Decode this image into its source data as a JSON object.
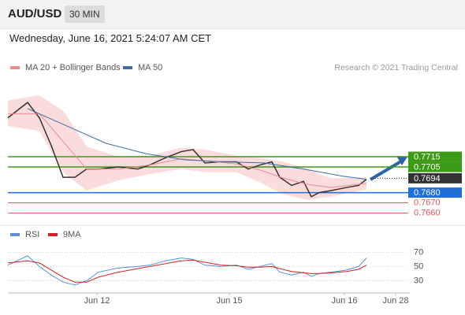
{
  "header": {
    "symbol": "AUD/USD",
    "interval": "30 MIN",
    "timestamp": "Wednesday, June 16, 2021 5:24:07 AM CET"
  },
  "chart_data": [
    {
      "type": "line",
      "source": "Research © 2021 Trading Central",
      "xlim": [
        0,
        102
      ],
      "ylim": [
        0.7652,
        0.778
      ],
      "series": [
        {
          "color": "#333333",
          "x": [
            0,
            5,
            8,
            11,
            14,
            17,
            20,
            23,
            28,
            33,
            36,
            40,
            44,
            47,
            50,
            54,
            58,
            61,
            64,
            67,
            69,
            72,
            75,
            77,
            79,
            82,
            86,
            89,
            91
          ],
          "values": [
            0.7753,
            0.7768,
            0.7753,
            0.7726,
            0.7695,
            0.7695,
            0.7703,
            0.7703,
            0.7705,
            0.7703,
            0.7707,
            0.7714,
            0.772,
            0.7722,
            0.7709,
            0.771,
            0.771,
            0.7703,
            0.7707,
            0.771,
            0.7695,
            0.7687,
            0.7691,
            0.7676,
            0.768,
            0.7682,
            0.7685,
            0.7687,
            0.7693
          ]
        },
        {
          "name": "MA 20 + Bollinger Bands",
          "color": "#ee8a8a",
          "band_color": "#fbdcdc",
          "x": [
            0,
            8,
            14,
            20,
            28,
            36,
            44,
            50,
            58,
            64,
            70,
            76,
            82,
            91
          ],
          "values": [
            0.7757,
            0.7757,
            0.773,
            0.7703,
            0.7703,
            0.7707,
            0.7713,
            0.7711,
            0.7708,
            0.7702,
            0.7694,
            0.7688,
            0.7685,
            0.7689
          ],
          "upper": [
            0.777,
            0.7775,
            0.776,
            0.7725,
            0.7715,
            0.7716,
            0.7724,
            0.7722,
            0.7716,
            0.7714,
            0.771,
            0.7703,
            0.7694,
            0.7695
          ],
          "lower": [
            0.7745,
            0.774,
            0.77,
            0.7682,
            0.7692,
            0.7698,
            0.7703,
            0.77,
            0.77,
            0.769,
            0.7678,
            0.7673,
            0.7676,
            0.7683
          ]
        },
        {
          "name": "MA 50",
          "color": "#3a6fa8",
          "x": [
            5,
            15,
            25,
            35,
            45,
            55,
            65,
            75,
            85,
            91
          ],
          "values": [
            0.7762,
            0.7745,
            0.7728,
            0.7718,
            0.7712,
            0.771,
            0.7709,
            0.7703,
            0.7696,
            0.7693
          ]
        }
      ],
      "levels": [
        {
          "value": 0.7715,
          "label": "0.7715",
          "color": "#3c9a14",
          "style": "box",
          "line": "solid"
        },
        {
          "value": 0.7705,
          "label": "0.7705",
          "color": "#3c9a14",
          "style": "box",
          "line": "solid"
        },
        {
          "value": 0.7694,
          "label": "0.7694",
          "color": "#333333",
          "style": "box",
          "line": "dotted"
        },
        {
          "value": 0.768,
          "label": "0.7680",
          "color": "#1f6fd6",
          "style": "box",
          "line": "solid"
        },
        {
          "value": 0.767,
          "label": "0.7670",
          "color": "#e05555",
          "style": "text",
          "line": "solid"
        },
        {
          "value": 0.766,
          "label": "0.7660",
          "color": "#e05555",
          "style": "text",
          "line": "solid"
        }
      ]
    },
    {
      "type": "line",
      "xlim": [
        0,
        102
      ],
      "ylim": [
        10,
        76
      ],
      "yticks": [
        30,
        50,
        70
      ],
      "xticks": [
        {
          "value": 22.6,
          "label": "Jun 12"
        },
        {
          "value": 56.2,
          "label": "Jun 15"
        },
        {
          "value": 85.4,
          "label": "Jun 16"
        },
        {
          "value": 98.4,
          "label": "Jun 28"
        }
      ],
      "series": [
        {
          "name": "RSI",
          "color": "#5b8fd6",
          "x": [
            0,
            5,
            8,
            11,
            14,
            17,
            20,
            23,
            28,
            33,
            36,
            40,
            44,
            47,
            50,
            54,
            58,
            61,
            64,
            67,
            69,
            72,
            75,
            77,
            79,
            82,
            86,
            89,
            91
          ],
          "values": [
            52,
            65,
            50,
            38,
            28,
            24,
            30,
            42,
            48,
            50,
            52,
            58,
            62,
            60,
            52,
            50,
            52,
            46,
            50,
            54,
            42,
            38,
            42,
            36,
            40,
            42,
            45,
            50,
            62
          ]
        },
        {
          "name": "9MA",
          "color": "#d62020",
          "x": [
            0,
            5,
            8,
            11,
            14,
            17,
            20,
            23,
            28,
            33,
            36,
            40,
            44,
            47,
            50,
            54,
            58,
            61,
            64,
            67,
            69,
            72,
            75,
            77,
            79,
            82,
            86,
            89,
            91
          ],
          "values": [
            55,
            58,
            55,
            45,
            35,
            28,
            28,
            35,
            42,
            47,
            50,
            54,
            58,
            59,
            56,
            52,
            51,
            49,
            49,
            50,
            47,
            43,
            41,
            40,
            40,
            41,
            43,
            46,
            52
          ]
        }
      ]
    }
  ]
}
